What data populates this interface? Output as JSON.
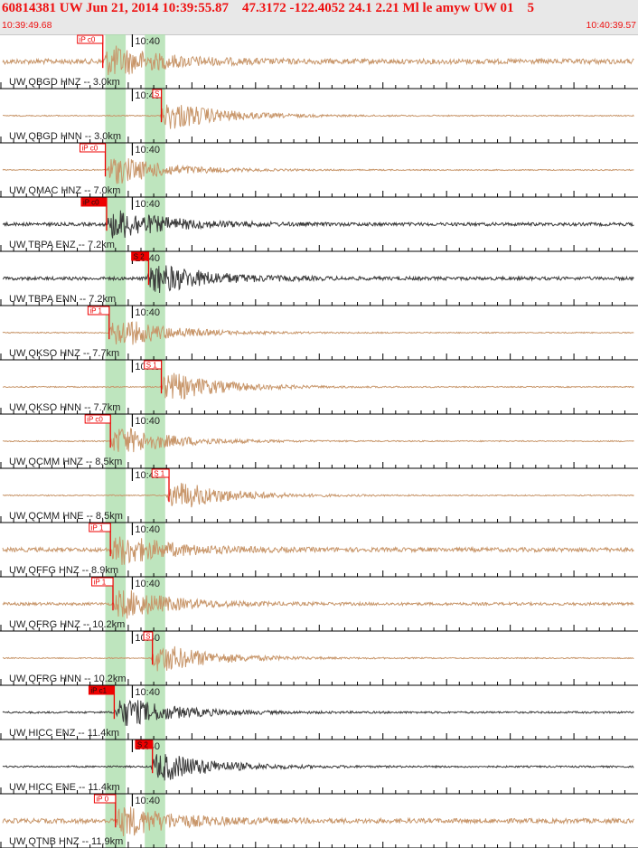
{
  "header": {
    "title": "60814381 UW Jun 21, 2014 10:39:55.87    47.3172 -122.4052 24.1 2.21 Ml le amyw UW 01    5",
    "start_time": "10:39:49.68",
    "end_time": "10:40:39.57"
  },
  "colors": {
    "trace_default": "#c8966a",
    "trace_dark": "#3a3a3a",
    "pick": "#ee0000",
    "band": "#a8dca8",
    "grid": "#000000"
  },
  "chart_data": {
    "type": "line",
    "title": "60814381 UW Jun 21, 2014 10:39:55.87    47.3172 -122.4052 24.1 2.21 Ml le amyw UW 01    5",
    "x_range_seconds": [
      0,
      49.89
    ],
    "minute_mark": {
      "label": "10:40",
      "t": 10.32
    },
    "p_band_t": [
      8.2,
      9.8
    ],
    "s_band_t": [
      11.3,
      12.9
    ],
    "traces": [
      {
        "label": "UW QBGD HNZ -- 3.0km",
        "color": "light",
        "amp": 0.55,
        "onset": 8.0,
        "pick": {
          "label": "iP c0",
          "t": 8.0,
          "filled": false
        }
      },
      {
        "label": "UW QBGD HNN -- 3.0km",
        "color": "light",
        "amp": 0.12,
        "onset": 12.5,
        "pick": {
          "label": "S",
          "t": 12.6,
          "filled": false
        }
      },
      {
        "label": "UW QMAC HNZ -- 7.0km",
        "color": "light",
        "amp": 0.12,
        "onset": 8.2,
        "pick": {
          "label": "iP c0",
          "t": 8.2,
          "filled": false
        }
      },
      {
        "label": "UW TBPA ENZ -- 7.2km",
        "color": "dark",
        "amp": 0.35,
        "onset": 8.3,
        "pick": {
          "label": "iP c0",
          "t": 8.3,
          "filled": true
        }
      },
      {
        "label": "UW TBPA ENN -- 7.2km",
        "color": "dark",
        "amp": 0.35,
        "onset": 11.5,
        "pick": {
          "label": "S 2",
          "t": 11.6,
          "filled": true
        }
      },
      {
        "label": "UW QKSO HNZ -- 7.7km",
        "color": "light",
        "amp": 0.12,
        "onset": 8.5,
        "pick": {
          "label": "iP 1",
          "t": 8.5,
          "filled": false
        }
      },
      {
        "label": "UW QKSO HNN -- 7.7km",
        "color": "light",
        "amp": 0.12,
        "onset": 12.5,
        "pick": {
          "label": "S 1",
          "t": 12.6,
          "filled": false
        }
      },
      {
        "label": "UW QCMM HNZ -- 8.5km",
        "color": "light",
        "amp": 0.12,
        "onset": 8.6,
        "pick": {
          "label": "iP c0",
          "t": 8.6,
          "filled": false
        }
      },
      {
        "label": "UW QCMM HNE -- 8.5km",
        "color": "light",
        "amp": 0.12,
        "onset": 13.0,
        "pick": {
          "label": "S 1",
          "t": 13.2,
          "filled": false
        }
      },
      {
        "label": "UW QFFG HNZ -- 8.9km",
        "color": "light",
        "amp": 0.45,
        "onset": 8.6,
        "pick": {
          "label": "iP 1",
          "t": 8.6,
          "filled": false
        }
      },
      {
        "label": "UW QFRG HNZ -- 10.2km",
        "color": "light",
        "amp": 0.3,
        "onset": 8.8,
        "pick": {
          "label": "iP 1",
          "t": 8.8,
          "filled": false
        }
      },
      {
        "label": "UW QFRG HNN -- 10.2km",
        "color": "light",
        "amp": 0.12,
        "onset": 11.8,
        "pick": {
          "label": "S",
          "t": 11.9,
          "filled": false
        }
      },
      {
        "label": "UW HICC ENZ -- 11.4km",
        "color": "dark",
        "amp": 0.2,
        "onset": 8.9,
        "pick": {
          "label": "iP c1",
          "t": 8.9,
          "filled": true
        }
      },
      {
        "label": "UW HICC ENE -- 11.4km",
        "color": "dark",
        "amp": 0.18,
        "onset": 11.8,
        "pick": {
          "label": "S 2",
          "t": 11.9,
          "filled": true
        }
      },
      {
        "label": "UW QTNB HNZ -- 11.9km",
        "color": "light",
        "amp": 0.5,
        "onset": 9.0,
        "pick": {
          "label": "iP 0",
          "t": 9.0,
          "filled": false
        }
      }
    ]
  }
}
